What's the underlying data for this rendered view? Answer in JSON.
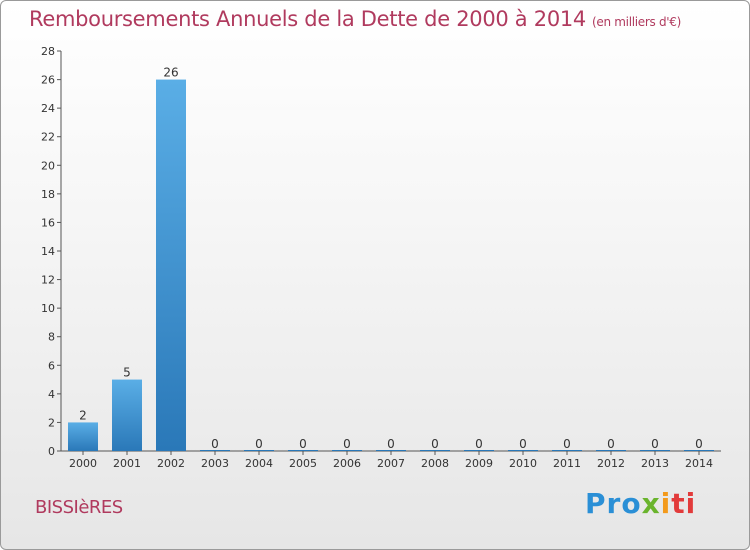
{
  "header": {
    "title": "Remboursements Annuels de la Dette de 2000 à 2014",
    "unit": "(en milliers d'€)"
  },
  "footer": {
    "town": "BISSIèRES",
    "logo": {
      "p1": "Pro",
      "p2": "x",
      "p3": "i",
      "p4": "ti"
    }
  },
  "colors": {
    "bar_top": "#5aaee6",
    "bar_bottom": "#2a78b8",
    "accent": "#b03a5e"
  },
  "chart_data": {
    "type": "bar",
    "categories": [
      "2000",
      "2001",
      "2002",
      "2003",
      "2004",
      "2005",
      "2006",
      "2007",
      "2008",
      "2009",
      "2010",
      "2011",
      "2012",
      "2013",
      "2014"
    ],
    "values": [
      2,
      5,
      26,
      0,
      0,
      0,
      0,
      0,
      0,
      0,
      0,
      0,
      0,
      0,
      0
    ],
    "title": "Remboursements Annuels de la Dette de 2000 à 2014",
    "ylim": [
      0,
      28
    ],
    "yticks": [
      0,
      2,
      4,
      6,
      8,
      10,
      12,
      14,
      16,
      18,
      20,
      22,
      24,
      26,
      28
    ],
    "grid": false,
    "legend": "none"
  }
}
